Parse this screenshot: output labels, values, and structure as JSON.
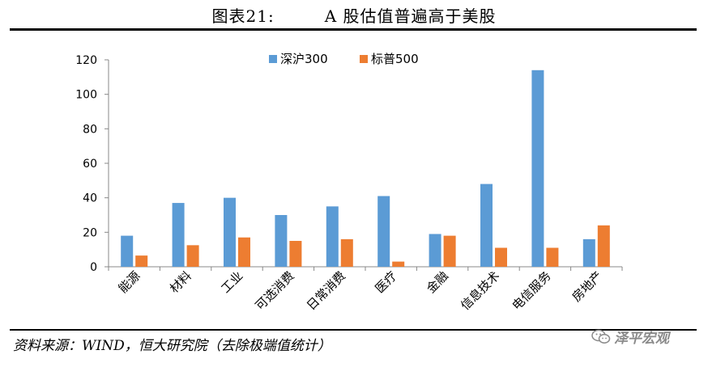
{
  "figure": {
    "number": "图表21:",
    "heading": "A 股估值普遍高于美股",
    "source": "资料来源：WIND，恒大研究院（去除极端值统计）",
    "watermark": "泽平宏观",
    "watermark_icon": "wechat-icon"
  },
  "colors": {
    "series_1": "#5b9bd5",
    "series_2": "#ed7d31",
    "axis": "#888888"
  },
  "chart_data": {
    "type": "bar",
    "categories": [
      "能源",
      "材料",
      "工业",
      "可选消费",
      "日常消费",
      "医疗",
      "金融",
      "信息技术",
      "电信服务",
      "房地产"
    ],
    "series": [
      {
        "name": "深沪300",
        "values": [
          18,
          37,
          40,
          30,
          35,
          41,
          19,
          48,
          114,
          16
        ]
      },
      {
        "name": "标普500",
        "values": [
          6.5,
          12.5,
          17,
          15,
          16,
          3,
          18,
          11,
          11,
          24
        ]
      }
    ],
    "ylim": [
      0,
      120
    ],
    "yticks": [
      0,
      20,
      40,
      60,
      80,
      100,
      120
    ],
    "grid": false,
    "legend": "top-center",
    "xlabel": "",
    "ylabel": ""
  }
}
